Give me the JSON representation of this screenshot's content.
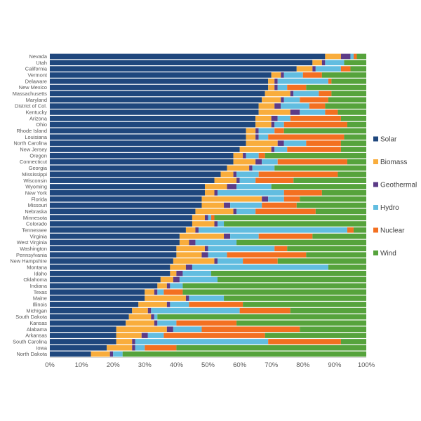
{
  "chart_data": {
    "type": "bar",
    "orientation": "horizontal",
    "stacked": "percent",
    "title": "",
    "xlabel": "",
    "ylabel": "",
    "xlim": [
      0,
      100
    ],
    "x_ticks": [
      "0%",
      "10%",
      "20%",
      "30%",
      "40%",
      "50%",
      "60%",
      "70%",
      "80%",
      "90%",
      "100%"
    ],
    "grid": false,
    "legend_position": "right",
    "colors": {
      "Solar": "#1f477d",
      "Biomass": "#f9ad3c",
      "Geothermal": "#5c3b87",
      "Hydro": "#62bde0",
      "Nuclear": "#f37021",
      "Wind": "#56a33c"
    },
    "categories": [
      "Nevada",
      "Utah",
      "California",
      "Vermont",
      "Delaware",
      "New Mexico",
      "Massachusetts",
      "Maryland",
      "District of Col.",
      "Kentucky",
      "Arizona",
      "Ohio",
      "Rhode Island",
      "Louisiana",
      "North Carolina",
      "New Jersey",
      "Oregon",
      "Connecticut",
      "Georgia",
      "Mississippi",
      "Wisconsin",
      "Wyoming",
      "New York",
      "Florida",
      "Missouri",
      "Nebraska",
      "Minnesota",
      "Colorado",
      "Tennessee",
      "Virginia",
      "West Virginia",
      "Washington",
      "Pennsylvania",
      "New Hampshire",
      "Montana",
      "Idaho",
      "Oklahoma",
      "Indiana",
      "Texas",
      "Maine",
      "Illinois",
      "Michigan",
      "South Dakota",
      "Kansas",
      "Alabama",
      "Arkansas",
      "South Carolina",
      "Iowa",
      "North Dakota"
    ],
    "series": [
      {
        "name": "Solar",
        "values": [
          87,
          83,
          78,
          70,
          69,
          69,
          68,
          67,
          66,
          66,
          65,
          65,
          62,
          62,
          62,
          60,
          58,
          58,
          56,
          54,
          52,
          49,
          49,
          48,
          48,
          46,
          45,
          45,
          43,
          41,
          41,
          40,
          40,
          39,
          38,
          38,
          35,
          34,
          30,
          30,
          28,
          26,
          25,
          24,
          21,
          21,
          21,
          18,
          13
        ]
      },
      {
        "name": "Biomass",
        "values": [
          5,
          3,
          5,
          3,
          2,
          2,
          8,
          6,
          5,
          10,
          5,
          5,
          3,
          3,
          10,
          10,
          3,
          7,
          7,
          4,
          7,
          7,
          3,
          19,
          7,
          12,
          4,
          7,
          3,
          14,
          3,
          9,
          8,
          13,
          5,
          2,
          4,
          3,
          3,
          13,
          9,
          5,
          7,
          9,
          16,
          8,
          5,
          8,
          6
        ]
      },
      {
        "name": "Geothermal",
        "values": [
          3,
          1,
          1,
          1,
          1,
          1,
          1,
          1,
          2,
          3,
          2,
          1,
          1,
          1,
          2,
          1,
          1,
          2,
          1,
          1,
          1,
          3,
          1,
          2,
          2,
          1,
          1,
          1,
          1,
          2,
          2,
          1,
          2,
          1,
          2,
          2,
          2,
          1,
          1,
          1,
          1,
          1,
          1,
          1,
          2,
          2,
          1,
          1,
          1
        ]
      },
      {
        "name": "Hydro",
        "values": [
          1,
          6,
          8,
          6,
          16,
          3,
          8,
          5,
          9,
          8,
          4,
          3,
          5,
          3,
          7,
          4,
          4,
          5,
          7,
          7,
          5,
          11,
          21,
          5,
          10,
          6,
          1,
          2,
          47,
          9,
          13,
          21,
          6,
          8,
          43,
          9,
          12,
          4,
          2,
          11,
          6,
          28,
          1,
          6,
          9,
          5,
          42,
          3,
          3
        ]
      },
      {
        "name": "Nuclear",
        "values": [
          1,
          0,
          3,
          6,
          1,
          6,
          4,
          9,
          5,
          4,
          16,
          20,
          3,
          24,
          11,
          17,
          2,
          22,
          0,
          25,
          12,
          0,
          12,
          5,
          11,
          19,
          1,
          0,
          2,
          17,
          0,
          4,
          25,
          11,
          0,
          0,
          0,
          0,
          6,
          0,
          17,
          16,
          0,
          19,
          31,
          32,
          23,
          10,
          0
        ]
      },
      {
        "name": "Wind",
        "values": [
          3,
          7,
          5,
          14,
          11,
          19,
          11,
          12,
          13,
          9,
          8,
          6,
          26,
          7,
          8,
          8,
          32,
          6,
          29,
          9,
          23,
          30,
          14,
          21,
          22,
          16,
          48,
          45,
          4,
          17,
          41,
          25,
          19,
          28,
          12,
          49,
          47,
          58,
          58,
          45,
          39,
          24,
          66,
          41,
          21,
          32,
          8,
          60,
          77
        ]
      }
    ]
  }
}
